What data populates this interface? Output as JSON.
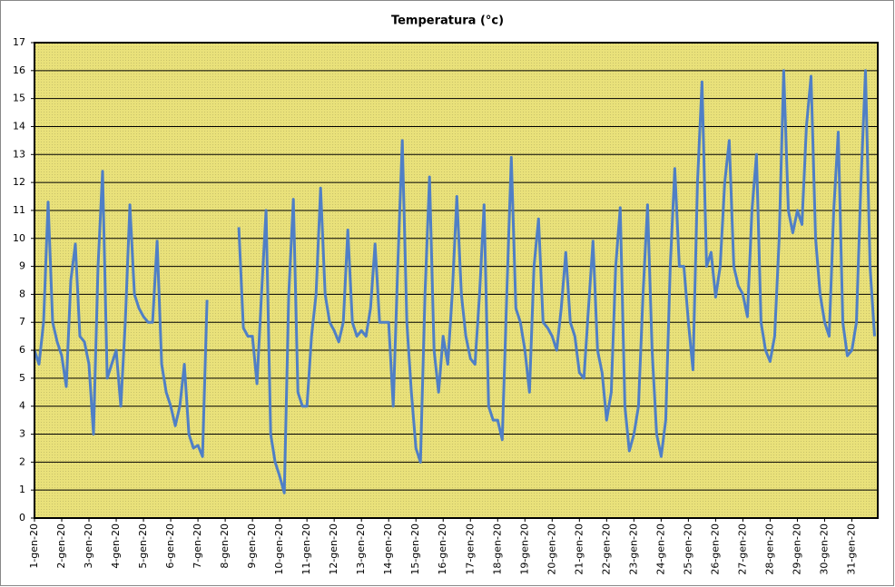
{
  "chart_data": {
    "type": "line",
    "title": "Temperatura (°c)",
    "x": [
      0,
      0.167,
      0.333,
      0.5,
      0.667,
      0.833,
      1,
      1.167,
      1.333,
      1.5,
      1.667,
      1.833,
      2,
      2.167,
      2.333,
      2.5,
      2.667,
      2.833,
      3,
      3.167,
      3.333,
      3.5,
      3.667,
      3.833,
      4,
      4.167,
      4.333,
      4.5,
      4.667,
      4.833,
      5,
      5.167,
      5.333,
      5.5,
      5.667,
      5.833,
      6,
      6.167,
      6.333,
      6.5,
      6.667,
      6.833,
      7,
      7.167,
      7.333,
      7.5,
      7.667,
      7.833,
      8,
      8.167,
      8.333,
      8.5,
      8.667,
      8.833,
      9,
      9.167,
      9.333,
      9.5,
      9.667,
      9.833,
      10,
      10.167,
      10.333,
      10.5,
      10.667,
      10.833,
      11,
      11.167,
      11.333,
      11.5,
      11.667,
      11.833,
      12,
      12.167,
      12.333,
      12.5,
      12.667,
      12.833,
      13,
      13.167,
      13.333,
      13.5,
      13.667,
      13.833,
      14,
      14.167,
      14.333,
      14.5,
      14.667,
      14.833,
      15,
      15.167,
      15.333,
      15.5,
      15.667,
      15.833,
      16,
      16.167,
      16.333,
      16.5,
      16.667,
      16.833,
      17,
      17.167,
      17.333,
      17.5,
      17.667,
      17.833,
      18,
      18.167,
      18.333,
      18.5,
      18.667,
      18.833,
      19,
      19.167,
      19.333,
      19.5,
      19.667,
      19.833,
      20,
      20.167,
      20.333,
      20.5,
      20.667,
      20.833,
      21,
      21.167,
      21.333,
      21.5,
      21.667,
      21.833,
      22,
      22.167,
      22.333,
      22.5,
      22.667,
      22.833,
      23,
      23.167,
      23.333,
      23.5,
      23.667,
      23.833,
      24,
      24.167,
      24.333,
      24.5,
      24.667,
      24.833,
      25,
      25.167,
      25.333,
      25.5,
      25.667,
      25.833,
      26,
      26.167,
      26.333,
      26.5,
      26.667,
      26.833,
      27,
      27.167,
      27.333,
      27.5,
      27.667,
      27.833,
      28,
      28.167,
      28.333,
      28.5,
      28.667,
      28.833,
      29,
      29.167,
      29.333,
      29.5,
      29.667,
      29.833,
      30,
      30.167,
      30.333,
      30.5,
      30.667,
      30.833
    ],
    "values": [
      6,
      5.5,
      7,
      11.3,
      7,
      6.3,
      5.8,
      4.7,
      8.5,
      9.8,
      6.5,
      6.3,
      5.5,
      3,
      9,
      12.4,
      5,
      5.5,
      6,
      4,
      7,
      11.2,
      8,
      7.5,
      7.2,
      7,
      7,
      9.9,
      5.5,
      4.5,
      4,
      3.3,
      4,
      5.5,
      3,
      2.5,
      2.6,
      2.2,
      7.8,
      null,
      null,
      null,
      null,
      null,
      null,
      10.4,
      6.8,
      6.5,
      6.5,
      4.8,
      8,
      11,
      3,
      2,
      1.5,
      0.9,
      8,
      11.4,
      4.5,
      4,
      4,
      6.5,
      8,
      11.8,
      8,
      7,
      6.7,
      6.3,
      7,
      10.3,
      7,
      6.5,
      6.7,
      6.5,
      7.5,
      9.8,
      7,
      7,
      7,
      4,
      9,
      13.5,
      7,
      4.5,
      2.5,
      2,
      8,
      12.2,
      6,
      4.5,
      6.5,
      5.5,
      8,
      11.5,
      8,
      6.5,
      5.7,
      5.5,
      8,
      11.2,
      4,
      3.5,
      3.5,
      2.8,
      8,
      12.9,
      7.5,
      7,
      6,
      4.5,
      9,
      10.7,
      7,
      6.8,
      6.5,
      6,
      7.5,
      9.5,
      7,
      6.5,
      5.2,
      5,
      7.5,
      9.9,
      6,
      5.2,
      3.5,
      4.5,
      9,
      11.1,
      4,
      2.4,
      3,
      4,
      8,
      11.2,
      6,
      3,
      2.2,
      3.5,
      9,
      12.5,
      9,
      9,
      7,
      5.3,
      12,
      15.6,
      9,
      9.5,
      7.9,
      9,
      12,
      13.5,
      9,
      8.3,
      8,
      7.2,
      11,
      13,
      7,
      6,
      5.6,
      6.5,
      10,
      16,
      11,
      10.2,
      11,
      10.5,
      14,
      15.8,
      10,
      8,
      7,
      6.5,
      11,
      13.8,
      7,
      5.8,
      6,
      7,
      12,
      16,
      9,
      6.5
    ],
    "color": "#4f7fc6",
    "xlim": [
      0,
      30.95
    ],
    "xticks": [
      {
        "value": 0,
        "label": "1-gen-20"
      },
      {
        "value": 1,
        "label": "2-gen-20"
      },
      {
        "value": 2,
        "label": "3-gen-20"
      },
      {
        "value": 3,
        "label": "4-gen-20"
      },
      {
        "value": 4,
        "label": "5-gen-20"
      },
      {
        "value": 5,
        "label": "6-gen-20"
      },
      {
        "value": 6,
        "label": "7-gen-20"
      },
      {
        "value": 7,
        "label": "8-gen-20"
      },
      {
        "value": 8,
        "label": "9-gen-20"
      },
      {
        "value": 9,
        "label": "10-gen-20"
      },
      {
        "value": 10,
        "label": "11-gen-20"
      },
      {
        "value": 11,
        "label": "12-gen-20"
      },
      {
        "value": 12,
        "label": "13-gen-20"
      },
      {
        "value": 13,
        "label": "14-gen-20"
      },
      {
        "value": 14,
        "label": "15-gen-20"
      },
      {
        "value": 15,
        "label": "16-gen-20"
      },
      {
        "value": 16,
        "label": "17-gen-20"
      },
      {
        "value": 17,
        "label": "18-gen-20"
      },
      {
        "value": 18,
        "label": "19-gen-20"
      },
      {
        "value": 19,
        "label": "20-gen-20"
      },
      {
        "value": 20,
        "label": "21-gen-20"
      },
      {
        "value": 21,
        "label": "22-gen-20"
      },
      {
        "value": 22,
        "label": "23-gen-20"
      },
      {
        "value": 23,
        "label": "24-gen-20"
      },
      {
        "value": 24,
        "label": "25-gen-20"
      },
      {
        "value": 25,
        "label": "26-gen-20"
      },
      {
        "value": 26,
        "label": "27-gen-20"
      },
      {
        "value": 27,
        "label": "28-gen-20"
      },
      {
        "value": 28,
        "label": "29-gen-20"
      },
      {
        "value": 29,
        "label": "30-gen-20"
      },
      {
        "value": 30,
        "label": "31-gen-20"
      }
    ],
    "ylim": [
      0,
      17
    ],
    "yticks": [
      0,
      1,
      2,
      3,
      4,
      5,
      6,
      7,
      8,
      9,
      10,
      11,
      12,
      13,
      14,
      15,
      16,
      17
    ],
    "grid": true
  }
}
